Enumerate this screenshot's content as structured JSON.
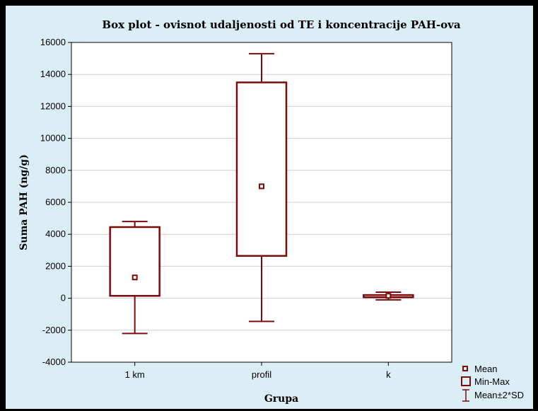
{
  "colors": {
    "background": "#dbeef5",
    "plot_area": "#ffffff",
    "series": "#7b0c0c",
    "grid": "#d0d0d0",
    "frame": "#000000"
  },
  "chart_data": {
    "type": "box",
    "title": "Box plot - ovisnot udaljenosti od TE i koncentracije PAH-ova",
    "xlabel": "Grupa",
    "ylabel": "Suma PAH (ng/g)",
    "ylim": [
      -4000,
      16000
    ],
    "yticks": [
      -4000,
      -2000,
      0,
      2000,
      4000,
      6000,
      8000,
      10000,
      12000,
      14000,
      16000
    ],
    "grid": true,
    "categories": [
      "1 km",
      "profil",
      "k"
    ],
    "boxes": [
      {
        "category": "1 km",
        "mean": 1300,
        "min": 150,
        "max": 4450,
        "mean_minus_2sd": -2200,
        "mean_plus_2sd": 4800
      },
      {
        "category": "profil",
        "mean": 7000,
        "min": 2650,
        "max": 13500,
        "mean_minus_2sd": -1450,
        "mean_plus_2sd": 15300
      },
      {
        "category": "k",
        "mean": 150,
        "min": 60,
        "max": 200,
        "mean_minus_2sd": -100,
        "mean_plus_2sd": 380
      }
    ],
    "legend": {
      "placement": "bottom-right",
      "items": [
        {
          "label": "Mean",
          "icon": "small-square-marker"
        },
        {
          "label": "Min-Max",
          "icon": "box-marker"
        },
        {
          "label": "Mean±2*SD",
          "icon": "whisker-marker"
        }
      ]
    }
  }
}
